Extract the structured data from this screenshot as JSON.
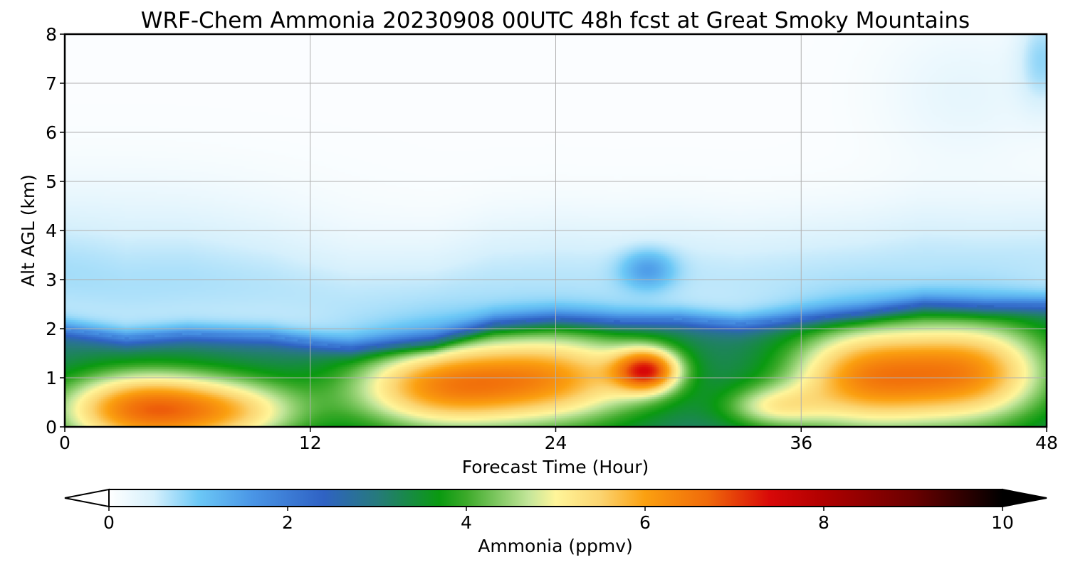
{
  "chart_data": {
    "type": "heatmap",
    "title": "WRF-Chem Ammonia  20230908 00UTC 48h fcst at Great Smoky Mountains",
    "xlabel": "Forecast Time (Hour)",
    "ylabel": "Alt AGL (km)",
    "xlim": [
      0,
      48
    ],
    "ylim": [
      0,
      8
    ],
    "x_ticks": [
      "0",
      "12",
      "24",
      "36",
      "48"
    ],
    "y_ticks": [
      "0",
      "1",
      "2",
      "3",
      "4",
      "5",
      "6",
      "7",
      "8"
    ],
    "grid": true,
    "colorbar": {
      "label": "Ammonia  (ppmv)",
      "range": [
        0,
        10
      ],
      "ticks": [
        "0",
        "2",
        "4",
        "6",
        "8",
        "10"
      ],
      "extend": "both",
      "under_color": "#ffffff",
      "over_color": "#000000",
      "colormap": [
        [
          0.0,
          "#ffffff"
        ],
        [
          0.5,
          "#d6f0fc"
        ],
        [
          1.0,
          "#6cc8f6"
        ],
        [
          1.6,
          "#4a96e6"
        ],
        [
          2.4,
          "#2f62c4"
        ],
        [
          3.0,
          "#267a7c"
        ],
        [
          3.7,
          "#0a9a10"
        ],
        [
          4.0,
          "#3caa2a"
        ],
        [
          4.7,
          "#c4e69a"
        ],
        [
          5.0,
          "#fff59a"
        ],
        [
          5.5,
          "#fbd470"
        ],
        [
          6.0,
          "#fba010"
        ],
        [
          6.7,
          "#f06a0a"
        ],
        [
          7.4,
          "#d80808"
        ],
        [
          8.0,
          "#b00000"
        ],
        [
          9.0,
          "#6a0000"
        ],
        [
          10.0,
          "#000000"
        ]
      ]
    },
    "field": {
      "description_units": "ppmv",
      "background": 0.05,
      "features": [
        {
          "x": 4,
          "y": 0.35,
          "sx": 4.5,
          "sy": 0.8,
          "amp": 3.6
        },
        {
          "x": 9,
          "y": 0.3,
          "sx": 3.5,
          "sy": 0.7,
          "amp": 1.5
        },
        {
          "x": 18,
          "y": 0.8,
          "sx": 4.5,
          "sy": 0.9,
          "amp": 2.7
        },
        {
          "x": 24,
          "y": 1.0,
          "sx": 5,
          "sy": 1.0,
          "amp": 2.8
        },
        {
          "x": 28.5,
          "y": 1.15,
          "sx": 1.6,
          "sy": 0.45,
          "amp": 3.2
        },
        {
          "x": 34.5,
          "y": 0.4,
          "sx": 2.5,
          "sy": 0.45,
          "amp": 1.5
        },
        {
          "x": 39,
          "y": 1.0,
          "sx": 4,
          "sy": 1.1,
          "amp": 3.0
        },
        {
          "x": 44.5,
          "y": 1.1,
          "sx": 4,
          "sy": 1.1,
          "amp": 2.9
        },
        {
          "x": 28.5,
          "y": 3.2,
          "sx": 1.3,
          "sy": 0.4,
          "amp": 0.9
        },
        {
          "x": 47.8,
          "y": 7.5,
          "sx": 1.2,
          "sy": 1.0,
          "amp": 0.7
        },
        {
          "x": 44,
          "y": 6.8,
          "sx": 4,
          "sy": 1.4,
          "amp": 0.25
        }
      ],
      "boundary_layer_top": [
        [
          0,
          2.0
        ],
        [
          3,
          1.8
        ],
        [
          6,
          1.9
        ],
        [
          10,
          1.85
        ],
        [
          14,
          1.6
        ],
        [
          18,
          1.7
        ],
        [
          21,
          2.1
        ],
        [
          24,
          2.2
        ],
        [
          27,
          2.15
        ],
        [
          30,
          2.2
        ],
        [
          33,
          2.1
        ],
        [
          36,
          2.2
        ],
        [
          39,
          2.3
        ],
        [
          42,
          2.5
        ],
        [
          45,
          2.45
        ],
        [
          48,
          2.5
        ]
      ],
      "boundary_layer_value": 2.9
    }
  }
}
